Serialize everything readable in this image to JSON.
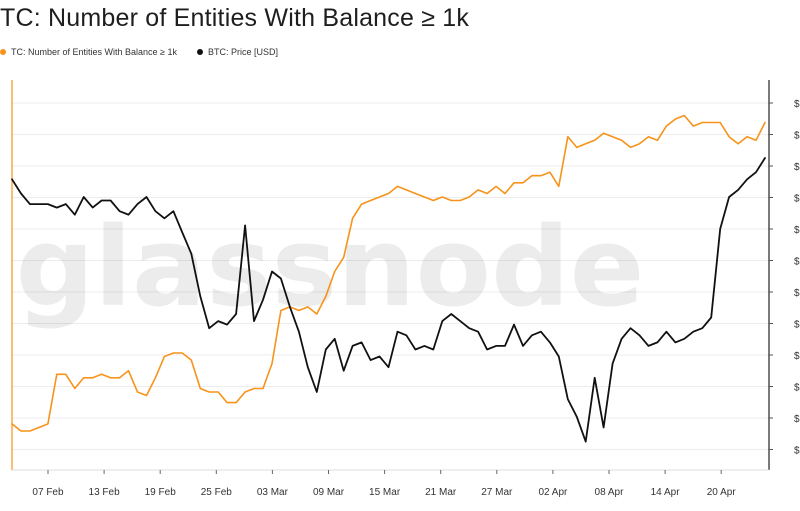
{
  "chart_data": {
    "type": "line",
    "title": "TC: Number of Entities With Balance ≥ 1k",
    "watermark": "glassnode",
    "x_ticks": [
      "07 Feb",
      "13 Feb",
      "19 Feb",
      "25 Feb",
      "03 Mar",
      "09 Mar",
      "15 Mar",
      "21 Mar",
      "27 Mar",
      "02 Apr",
      "08 Apr",
      "14 Apr",
      "20 Apr"
    ],
    "right_axis_ticks": [
      "$",
      "$",
      "$",
      "$",
      "$",
      "$",
      "$",
      "$",
      "$",
      "$",
      "$",
      "$"
    ],
    "grid": true,
    "series": [
      {
        "name": "TC: Number of Entities With Balance ≥ 1k",
        "color": "#f7931a",
        "values": [
          3.3,
          3.1,
          3.1,
          3.2,
          3.3,
          4.7,
          4.7,
          4.3,
          4.6,
          4.6,
          4.7,
          4.6,
          4.6,
          4.8,
          4.2,
          4.1,
          4.6,
          5.2,
          5.3,
          5.3,
          5.1,
          4.3,
          4.2,
          4.2,
          3.9,
          3.9,
          4.2,
          4.3,
          4.3,
          5.0,
          6.5,
          6.6,
          6.5,
          6.6,
          6.4,
          6.9,
          7.6,
          8.0,
          9.1,
          9.5,
          9.6,
          9.7,
          9.8,
          10.0,
          9.9,
          9.8,
          9.7,
          9.6,
          9.7,
          9.6,
          9.6,
          9.7,
          9.9,
          9.8,
          10.0,
          9.8,
          10.1,
          10.1,
          10.3,
          10.3,
          10.4,
          10.0,
          11.4,
          11.1,
          11.2,
          11.3,
          11.5,
          11.4,
          11.3,
          11.1,
          11.2,
          11.4,
          11.3,
          11.7,
          11.9,
          12.0,
          11.7,
          11.8,
          11.8,
          11.8,
          11.4,
          11.2,
          11.4,
          11.3,
          11.8
        ]
      },
      {
        "name": "BTC: Price [USD]",
        "color": "#111111",
        "values": [
          10.2,
          9.8,
          9.5,
          9.5,
          9.5,
          9.4,
          9.5,
          9.2,
          9.7,
          9.4,
          9.6,
          9.6,
          9.3,
          9.2,
          9.5,
          9.7,
          9.3,
          9.1,
          9.3,
          8.7,
          8.1,
          6.9,
          6.0,
          6.2,
          6.1,
          6.4,
          8.9,
          6.2,
          6.8,
          7.6,
          7.4,
          6.6,
          5.9,
          4.9,
          4.2,
          5.4,
          5.7,
          4.8,
          5.5,
          5.6,
          5.1,
          5.2,
          4.9,
          5.9,
          5.8,
          5.4,
          5.5,
          5.4,
          6.2,
          6.4,
          6.2,
          6.0,
          5.9,
          5.4,
          5.5,
          5.5,
          6.1,
          5.5,
          5.8,
          5.9,
          5.6,
          5.2,
          4.0,
          3.5,
          2.8,
          4.6,
          3.2,
          5.0,
          5.7,
          6.0,
          5.8,
          5.5,
          5.6,
          5.9,
          5.6,
          5.7,
          5.9,
          6.0,
          6.3,
          8.8,
          9.7,
          9.9,
          10.2,
          10.4,
          10.8
        ]
      }
    ]
  }
}
